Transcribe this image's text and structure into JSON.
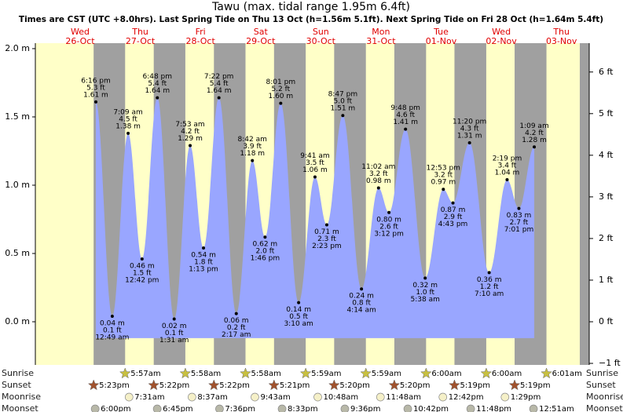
{
  "header": {
    "title": "Tawu (max. tidal range 1.95m 6.4ft)",
    "subtitle": "Times are CST (UTC +8.0hrs). Last Spring Tide on Thu 13 Oct (h=1.56m 5.1ft). Next Spring Tide on Fri 28 Oct (h=1.64m 5.4ft)"
  },
  "chart_data": {
    "type": "area",
    "color": "#99a6ff",
    "ylim": [
      -0.316,
      2.04
    ],
    "yticks": [
      {
        "value": 0,
        "label": "0.0 m"
      },
      {
        "value": 0.5,
        "label": "0.5 m"
      },
      {
        "value": 1,
        "label": "1.0 m"
      },
      {
        "value": 1.5,
        "label": "1.5 m"
      },
      {
        "value": 2,
        "label": "2.0 m"
      }
    ],
    "y2lim": [
      -1.037,
      6.693
    ],
    "y2ticks": [
      {
        "value": -1,
        "label": "−1 ft"
      },
      {
        "value": 0,
        "label": "0 ft"
      },
      {
        "value": 1,
        "label": "1 ft"
      },
      {
        "value": 2,
        "label": "2 ft"
      },
      {
        "value": 3,
        "label": "3 ft"
      },
      {
        "value": 4,
        "label": "4 ft"
      },
      {
        "value": 5,
        "label": "5 ft"
      },
      {
        "value": 6,
        "label": "6 ft"
      }
    ],
    "rows": {
      "sunrise": "Sunrise",
      "sunset": "Sunset",
      "moonrise": "Moonrise",
      "moonset": "Moonset"
    },
    "days": [
      {
        "weekday": "Wed",
        "date": "26-Oct",
        "tides": [
          {
            "time": "6:16 pm",
            "ft": "5.3 ft",
            "m": 1.61,
            "m_label": "1.61 m"
          }
        ],
        "sunset": "5:23pm",
        "moonset": "6:00pm"
      },
      {
        "weekday": "Thu",
        "date": "27-Oct",
        "tides": [
          {
            "time": "12:49 am",
            "ft": "0.1 ft",
            "m": 0.04,
            "m_label": "0.04 m"
          },
          {
            "time": "7:09 am",
            "ft": "4.5 ft",
            "m": 1.38,
            "m_label": "1.38 m"
          },
          {
            "time": "12:42 pm",
            "ft": "1.5 ft",
            "m": 0.46,
            "m_label": "0.46 m"
          },
          {
            "time": "6:48 pm",
            "ft": "5.4 ft",
            "m": 1.64,
            "m_label": "1.64 m"
          }
        ],
        "sunrise": "5:57am",
        "sunset": "5:22pm",
        "moonrise": "7:31am",
        "moonset": "6:45pm"
      },
      {
        "weekday": "Fri",
        "date": "28-Oct",
        "tides": [
          {
            "time": "1:31 am",
            "ft": "0.1 ft",
            "m": 0.02,
            "m_label": "0.02 m"
          },
          {
            "time": "7:53 am",
            "ft": "4.2 ft",
            "m": 1.29,
            "m_label": "1.29 m"
          },
          {
            "time": "1:13 pm",
            "ft": "1.8 ft",
            "m": 0.54,
            "m_label": "0.54 m"
          },
          {
            "time": "7:22 pm",
            "ft": "5.4 ft",
            "m": 1.64,
            "m_label": "1.64 m"
          }
        ],
        "sunrise": "5:58am",
        "sunset": "5:22pm",
        "moonrise": "8:37am",
        "moonset": "7:36pm"
      },
      {
        "weekday": "Sat",
        "date": "29-Oct",
        "tides": [
          {
            "time": "2:17 am",
            "ft": "0.2 ft",
            "m": 0.06,
            "m_label": "0.06 m"
          },
          {
            "time": "8:42 am",
            "ft": "3.9 ft",
            "m": 1.18,
            "m_label": "1.18 m"
          },
          {
            "time": "1:46 pm",
            "ft": "2.0 ft",
            "m": 0.62,
            "m_label": "0.62 m"
          },
          {
            "time": "8:01 pm",
            "ft": "5.2 ft",
            "m": 1.6,
            "m_label": "1.60 m"
          }
        ],
        "sunrise": "5:58am",
        "sunset": "5:21pm",
        "moonrise": "9:43am",
        "moonset": "8:33pm"
      },
      {
        "weekday": "Sun",
        "date": "30-Oct",
        "tides": [
          {
            "time": "3:10 am",
            "ft": "0.5 ft",
            "m": 0.14,
            "m_label": "0.14 m"
          },
          {
            "time": "9:41 am",
            "ft": "3.5 ft",
            "m": 1.06,
            "m_label": "1.06 m"
          },
          {
            "time": "2:23 pm",
            "ft": "2.3 ft",
            "m": 0.71,
            "m_label": "0.71 m"
          },
          {
            "time": "8:47 pm",
            "ft": "5.0 ft",
            "m": 1.51,
            "m_label": "1.51 m"
          }
        ],
        "sunrise": "5:59am",
        "sunset": "5:20pm",
        "moonrise": "10:48am",
        "moonset": "9:36pm"
      },
      {
        "weekday": "Mon",
        "date": "31-Oct",
        "tides": [
          {
            "time": "4:14 am",
            "ft": "0.8 ft",
            "m": 0.24,
            "m_label": "0.24 m"
          },
          {
            "time": "11:02 am",
            "ft": "3.2 ft",
            "m": 0.98,
            "m_label": "0.98 m"
          },
          {
            "time": "3:12 pm",
            "ft": "2.6 ft",
            "m": 0.8,
            "m_label": "0.80 m"
          },
          {
            "time": "9:48 pm",
            "ft": "4.6 ft",
            "m": 1.41,
            "m_label": "1.41 m"
          }
        ],
        "sunrise": "5:59am",
        "sunset": "5:20pm",
        "moonrise": "11:48am",
        "moonset": "10:42pm"
      },
      {
        "weekday": "Tue",
        "date": "01-Nov",
        "tides": [
          {
            "time": "5:38 am",
            "ft": "1.0 ft",
            "m": 0.32,
            "m_label": "0.32 m"
          },
          {
            "time": "12:53 pm",
            "ft": "3.2 ft",
            "m": 0.97,
            "m_label": "0.97 m"
          },
          {
            "time": "4:43 pm",
            "ft": "2.9 ft",
            "m": 0.87,
            "m_label": "0.87 m"
          },
          {
            "time": "11:20 pm",
            "ft": "4.3 ft",
            "m": 1.31,
            "m_label": "1.31 m"
          }
        ],
        "sunrise": "6:00am",
        "sunset": "5:19pm",
        "moonrise": "12:42pm",
        "moonset": "11:48pm"
      },
      {
        "weekday": "Wed",
        "date": "02-Nov",
        "tides": [
          {
            "time": "7:10 am",
            "ft": "1.2 ft",
            "m": 0.36,
            "m_label": "0.36 m"
          },
          {
            "time": "2:19 pm",
            "ft": "3.4 ft",
            "m": 1.04,
            "m_label": "1.04 m"
          },
          {
            "time": "7:01 pm",
            "ft": "2.7 ft",
            "m": 0.83,
            "m_label": "0.83 m"
          }
        ],
        "sunrise": "6:00am",
        "sunset": "5:19pm",
        "moonrise": "1:29pm"
      },
      {
        "weekday": "Thu",
        "date": "03-Nov",
        "tides": [
          {
            "time": "1:09 am",
            "ft": "4.2 ft",
            "m": 1.28,
            "m_label": "1.28 m"
          }
        ],
        "sunrise": "6:01am",
        "moonset": "12:51am"
      }
    ]
  }
}
